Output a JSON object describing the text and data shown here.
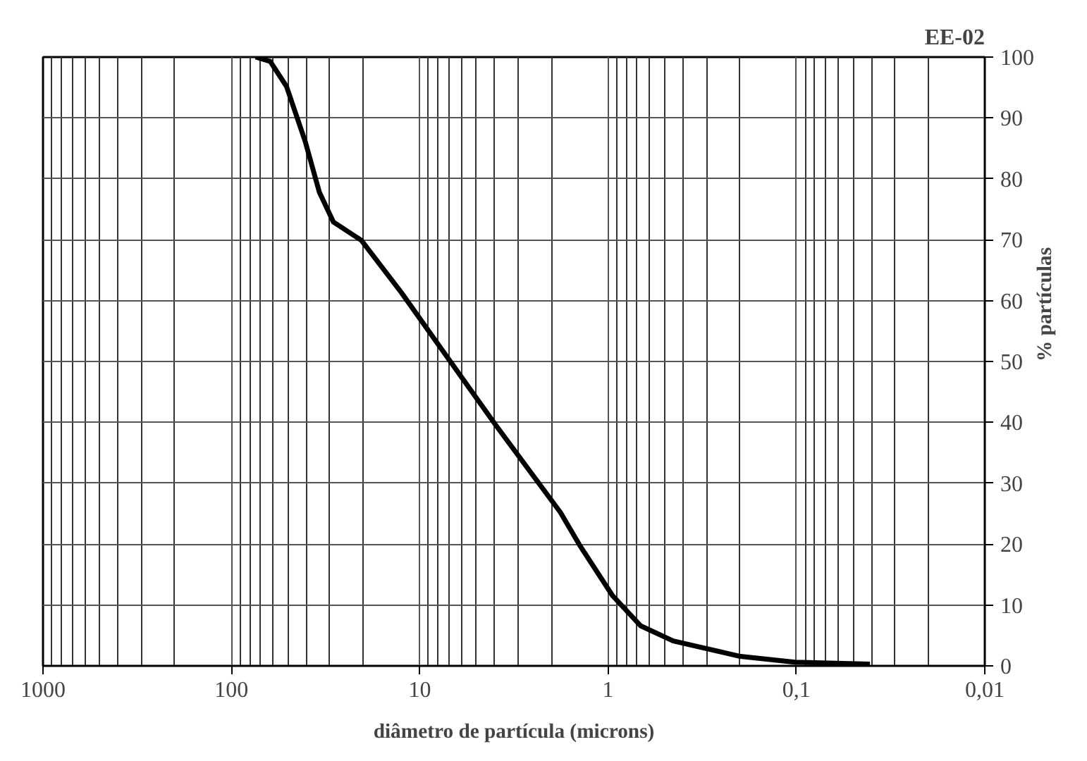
{
  "chart_data": {
    "type": "line",
    "title": "EE-02",
    "xlabel": "diâmetro de partícula (microns)",
    "ylabel": "% partículas",
    "log": "x",
    "grid": true,
    "line_style": "solid",
    "xlim": [
      1000,
      0.01
    ],
    "xticks": [
      1000,
      100,
      10,
      1,
      {
        "value": 0.1,
        "label": "0,1"
      },
      {
        "value": 0.01,
        "label": "0,01"
      }
    ],
    "ylim": [
      0,
      100
    ],
    "yticks": [
      0,
      10,
      20,
      30,
      40,
      50,
      60,
      70,
      80,
      90,
      100
    ],
    "series": [
      {
        "color": "#000000",
        "x": [
          74.3,
          62.2,
          51,
          40.5,
          34.1,
          28.7,
          20.4,
          12.5,
          7.06,
          3.98,
          1.79,
          1.42,
          0.95,
          0.673,
          0.451,
          0.202,
          0.102,
          0.0407
        ],
        "values": [
          100,
          99.3,
          95.2,
          86.1,
          77.8,
          72.9,
          69.9,
          61.3,
          50.5,
          39.7,
          25.2,
          19.9,
          11.6,
          6.6,
          4.1,
          1.6,
          0.6,
          0.3
        ]
      }
    ]
  }
}
